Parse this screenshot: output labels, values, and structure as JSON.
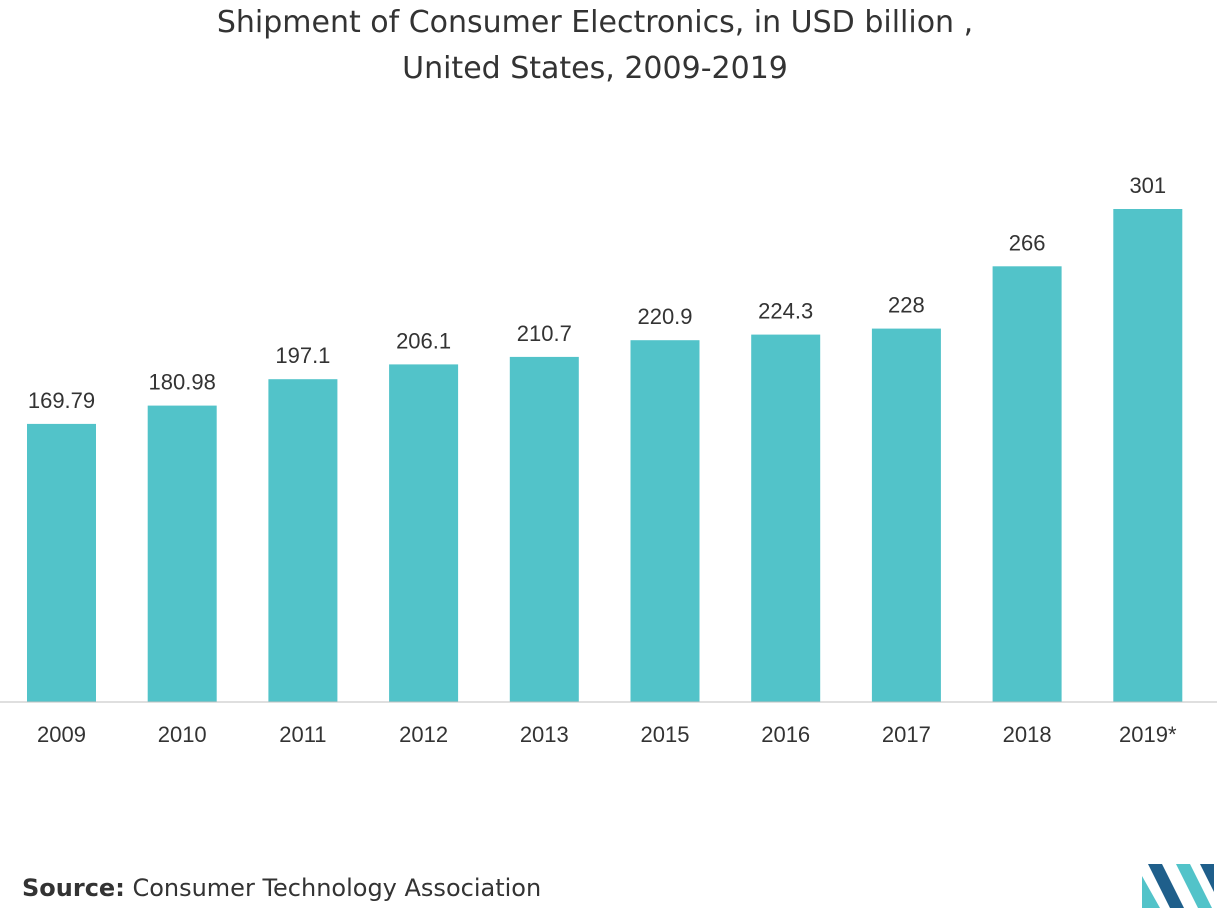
{
  "title_line1": "Shipment of Consumer Electronics, in USD billion ,",
  "title_line2": "United States, 2009-2019",
  "source_label": "Source:",
  "source_text": "Consumer Technology Association",
  "colors": {
    "bar": "#52C3C9",
    "axis": "#BFBFBF",
    "logo_dark": "#1F5F8B",
    "logo_light": "#52C3C9"
  },
  "logo": "mordor-intelligence-logo",
  "chart_data": {
    "type": "bar",
    "title": "Shipment of Consumer Electronics, in USD billion , United States, 2009-2019",
    "xlabel": "",
    "ylabel": "",
    "categories": [
      "2009",
      "2010",
      "2011",
      "2012",
      "2013",
      "2015",
      "2016",
      "2017",
      "2018",
      "2019*"
    ],
    "values": [
      169.79,
      180.98,
      197.1,
      206.1,
      210.7,
      220.9,
      224.3,
      228,
      266,
      301
    ],
    "value_labels": [
      "169.79",
      "180.98",
      "197.1",
      "206.1",
      "210.7",
      "220.9",
      "224.3",
      "228",
      "266",
      "301"
    ],
    "ylim": [
      0,
      301
    ],
    "grid": false,
    "legend": "none"
  }
}
